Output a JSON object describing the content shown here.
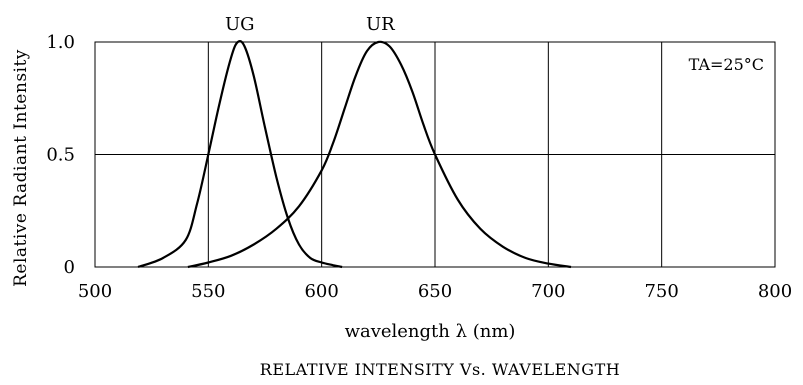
{
  "chart_data": {
    "type": "line",
    "title": "RELATIVE INTENSITY Vs. WAVELENGTH",
    "xlabel": "wavelength λ  (nm)",
    "ylabel": "Relative Radiant Intensity",
    "xlim": [
      500,
      800
    ],
    "ylim": [
      0,
      1.0
    ],
    "x_ticks": [
      500,
      550,
      600,
      650,
      700,
      750,
      800
    ],
    "y_ticks": [
      0,
      0.5,
      1.0
    ],
    "x_tick_labels": [
      "500",
      "550",
      "600",
      "650",
      "700",
      "750",
      "800"
    ],
    "y_tick_labels": [
      "0",
      "0.5",
      "1.0"
    ],
    "grid": true,
    "annotation": "TA=25°C",
    "series": [
      {
        "name": "UG",
        "x": [
          519,
          530,
          540,
          545,
          550,
          555,
          560,
          563,
          566,
          570,
          575,
          580,
          585,
          590,
          595,
          600,
          605,
          609
        ],
        "y": [
          0.0,
          0.04,
          0.12,
          0.28,
          0.5,
          0.73,
          0.93,
          1.0,
          0.98,
          0.85,
          0.62,
          0.4,
          0.22,
          0.1,
          0.04,
          0.02,
          0.008,
          0.0
        ]
      },
      {
        "name": "UR",
        "x": [
          541,
          550,
          560,
          570,
          580,
          590,
          600,
          605,
          610,
          615,
          620,
          625,
          630,
          635,
          640,
          645,
          650,
          660,
          670,
          680,
          690,
          700,
          710
        ],
        "y": [
          0.0,
          0.02,
          0.05,
          0.1,
          0.17,
          0.27,
          0.43,
          0.55,
          0.7,
          0.85,
          0.96,
          1.0,
          0.98,
          0.9,
          0.78,
          0.63,
          0.5,
          0.3,
          0.17,
          0.09,
          0.04,
          0.015,
          0.0
        ]
      }
    ]
  }
}
